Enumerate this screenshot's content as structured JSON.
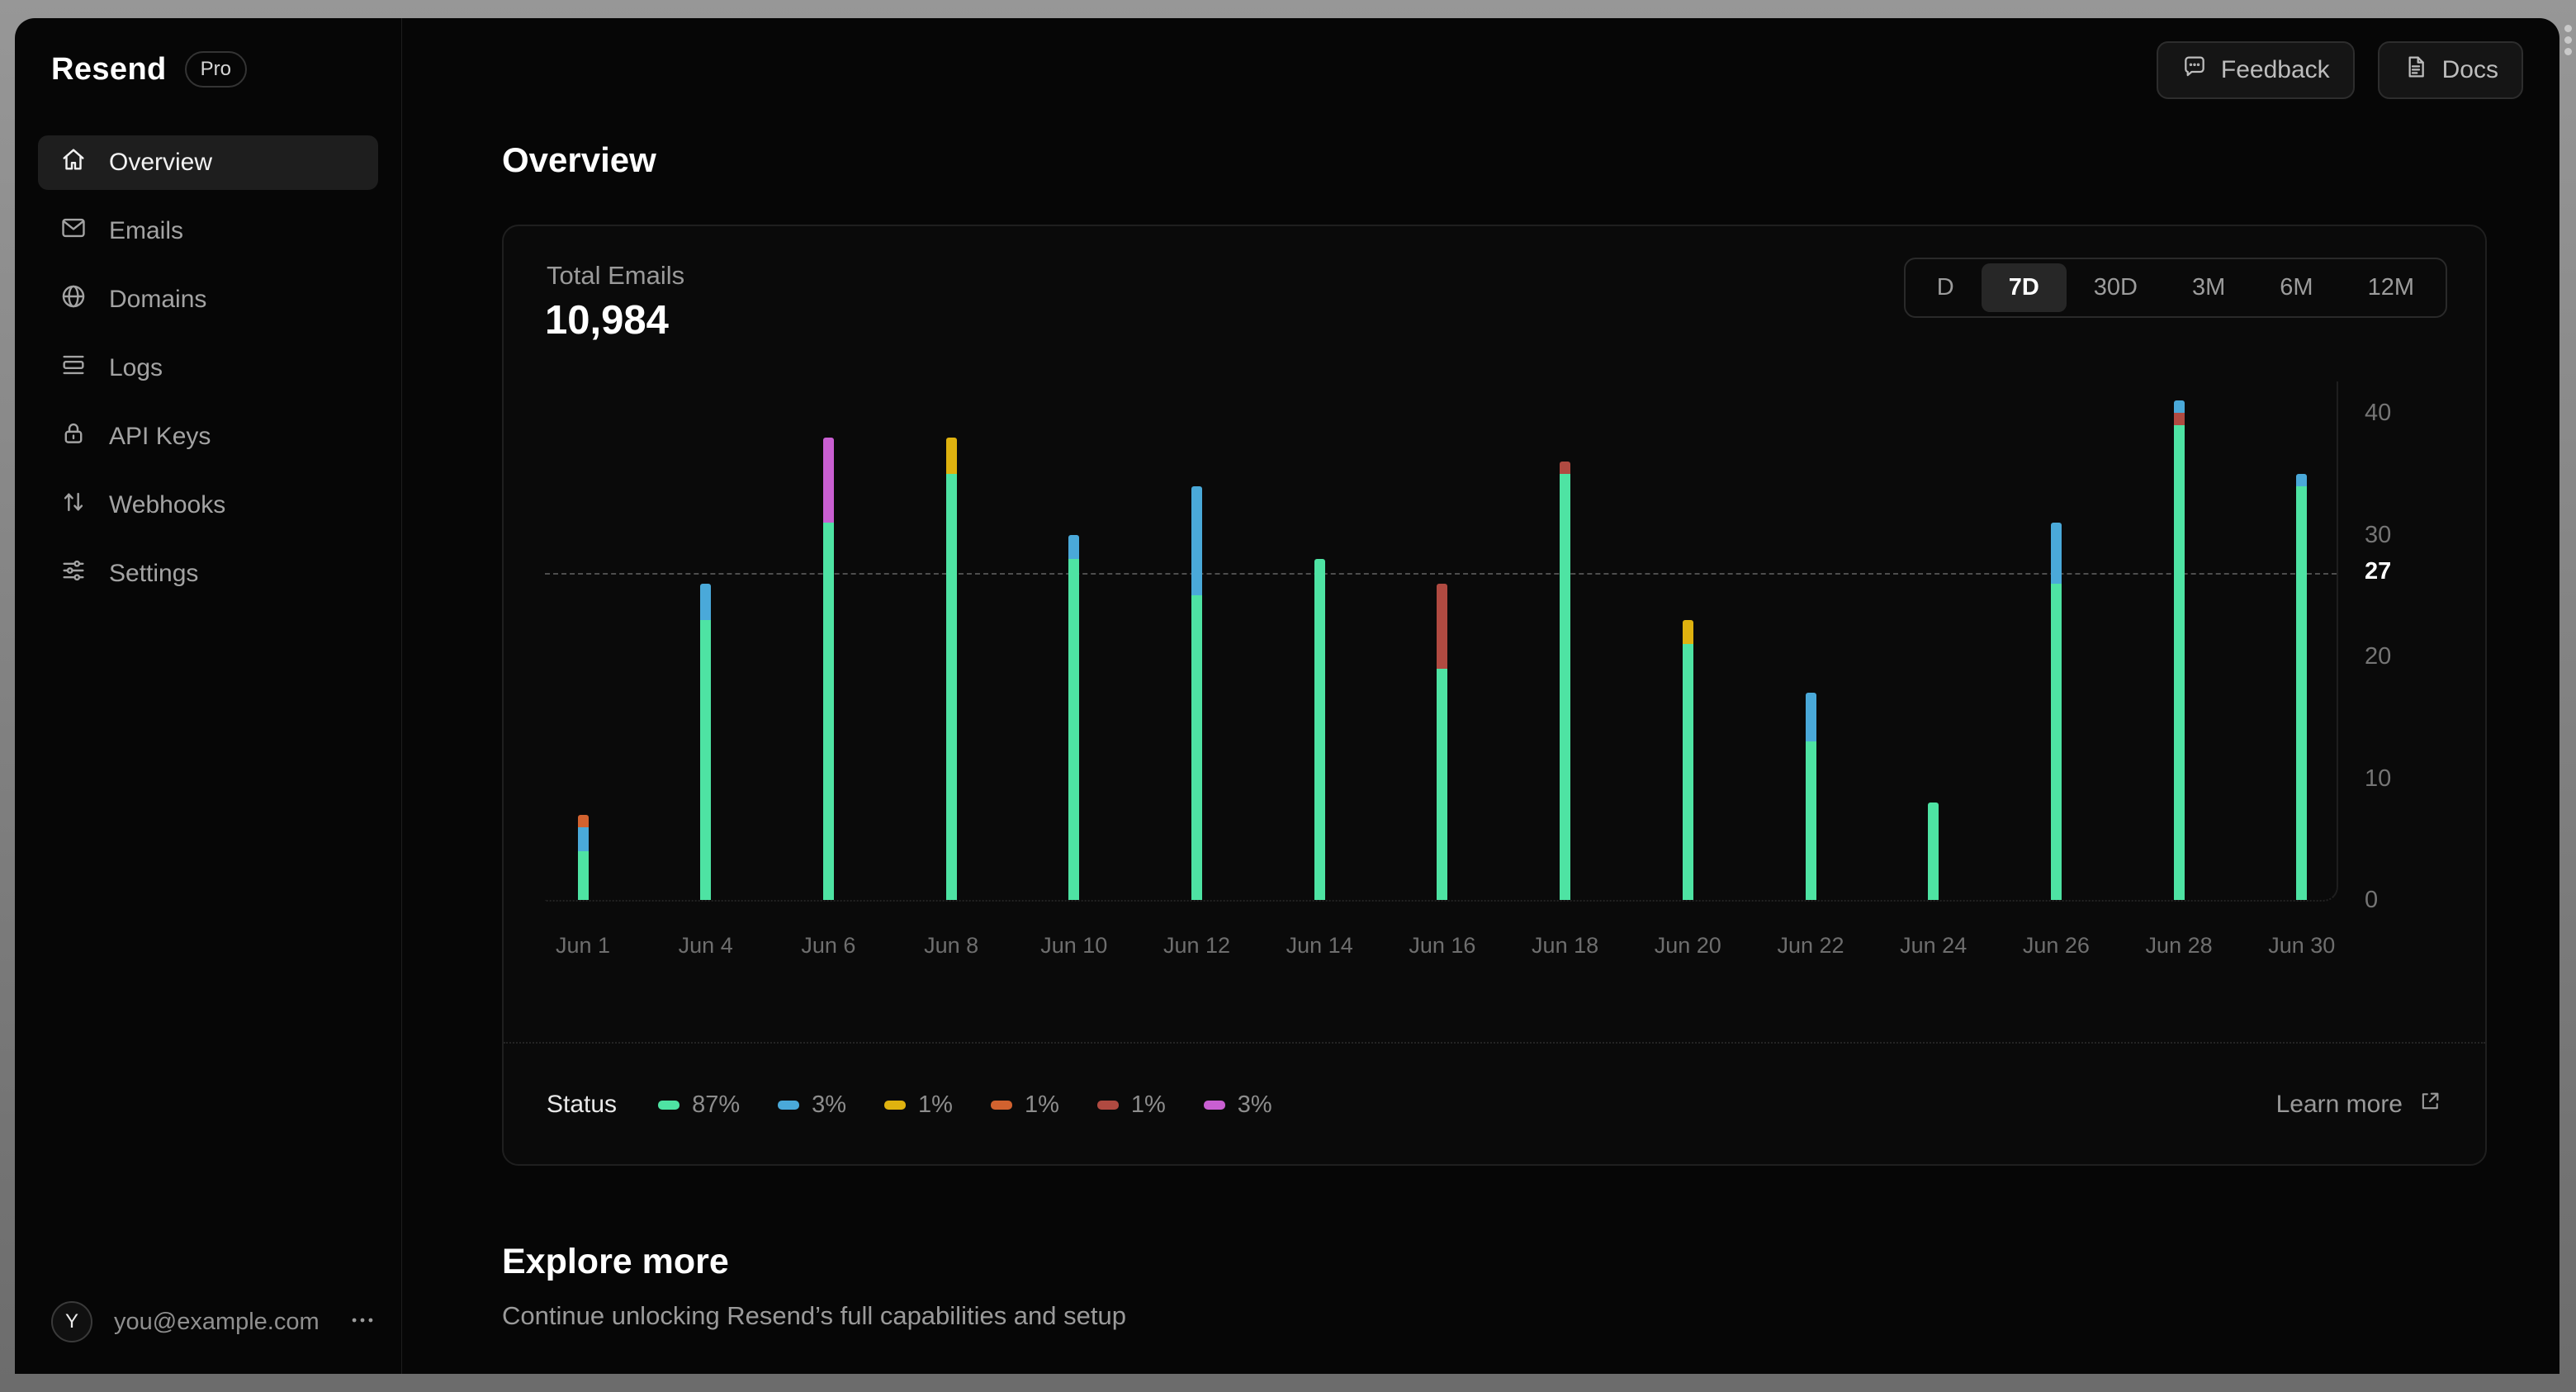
{
  "brand": {
    "name": "Resend",
    "plan_badge": "Pro"
  },
  "sidebar": {
    "items": [
      {
        "label": "Overview",
        "icon": "home",
        "active": true
      },
      {
        "label": "Emails",
        "icon": "mail",
        "active": false
      },
      {
        "label": "Domains",
        "icon": "globe",
        "active": false
      },
      {
        "label": "Logs",
        "icon": "logs",
        "active": false
      },
      {
        "label": "API Keys",
        "icon": "lock",
        "active": false
      },
      {
        "label": "Webhooks",
        "icon": "webhooks",
        "active": false
      },
      {
        "label": "Settings",
        "icon": "settings",
        "active": false
      }
    ],
    "user": {
      "avatar_initial": "Y",
      "email": "you@example.com"
    }
  },
  "topbar": {
    "feedback_label": "Feedback",
    "docs_label": "Docs"
  },
  "page": {
    "title": "Overview"
  },
  "card": {
    "metric_label": "Total Emails",
    "metric_value": "10,984",
    "ranges": [
      "D",
      "7D",
      "30D",
      "3M",
      "6M",
      "12M"
    ],
    "selected_range": "7D",
    "status_label": "Status",
    "learn_more_label": "Learn more"
  },
  "status_legend": [
    {
      "color": "green",
      "percent": "87%"
    },
    {
      "color": "blue",
      "percent": "3%"
    },
    {
      "color": "yellow",
      "percent": "1%"
    },
    {
      "color": "orange",
      "percent": "1%"
    },
    {
      "color": "red",
      "percent": "1%"
    },
    {
      "color": "magenta",
      "percent": "3%"
    }
  ],
  "explore": {
    "title": "Explore more",
    "subtitle": "Continue unlocking Resend’s full capabilities and setup"
  },
  "chart_data": {
    "type": "bar",
    "stacked": true,
    "title": "Total Emails",
    "yticks": [
      0,
      10,
      20,
      30,
      40
    ],
    "ylim": [
      0,
      42
    ],
    "reference_value": 27,
    "grid": false,
    "legend_position": "bottom",
    "colors": {
      "green": "#4ee3a3",
      "blue": "#4aa9d9",
      "yellow": "#dfb20f",
      "orange": "#d2622f",
      "red": "#b04a41",
      "magenta": "#c95fd2"
    },
    "categories": [
      "Jun 1",
      "Jun 4",
      "Jun 6",
      "Jun 8",
      "Jun 10",
      "Jun 12",
      "Jun 14",
      "Jun 16",
      "Jun 18",
      "Jun 20",
      "Jun 22",
      "Jun 24",
      "Jun 26",
      "Jun 28",
      "Jun 30"
    ],
    "bars": [
      {
        "date": "Jun 1",
        "segments": [
          {
            "color": "green",
            "value": 4
          },
          {
            "color": "blue",
            "value": 2
          },
          {
            "color": "orange",
            "value": 1
          }
        ]
      },
      {
        "date": "Jun 4",
        "segments": [
          {
            "color": "green",
            "value": 23
          },
          {
            "color": "blue",
            "value": 3
          }
        ]
      },
      {
        "date": "Jun 6",
        "segments": [
          {
            "color": "green",
            "value": 31
          },
          {
            "color": "magenta",
            "value": 7
          }
        ]
      },
      {
        "date": "Jun 8",
        "segments": [
          {
            "color": "green",
            "value": 35
          },
          {
            "color": "yellow",
            "value": 3
          }
        ]
      },
      {
        "date": "Jun 10",
        "segments": [
          {
            "color": "green",
            "value": 28
          },
          {
            "color": "blue",
            "value": 2
          }
        ]
      },
      {
        "date": "Jun 12",
        "segments": [
          {
            "color": "green",
            "value": 25
          },
          {
            "color": "blue",
            "value": 9
          }
        ]
      },
      {
        "date": "Jun 14",
        "segments": [
          {
            "color": "green",
            "value": 28
          }
        ]
      },
      {
        "date": "Jun 16",
        "segments": [
          {
            "color": "green",
            "value": 19
          },
          {
            "color": "red",
            "value": 7
          }
        ]
      },
      {
        "date": "Jun 18",
        "segments": [
          {
            "color": "green",
            "value": 35
          },
          {
            "color": "red",
            "value": 1
          }
        ]
      },
      {
        "date": "Jun 20",
        "segments": [
          {
            "color": "green",
            "value": 21
          },
          {
            "color": "yellow",
            "value": 2
          }
        ]
      },
      {
        "date": "Jun 22",
        "segments": [
          {
            "color": "green",
            "value": 13
          },
          {
            "color": "blue",
            "value": 4
          }
        ]
      },
      {
        "date": "Jun 24",
        "segments": [
          {
            "color": "green",
            "value": 8
          }
        ]
      },
      {
        "date": "Jun 26",
        "segments": [
          {
            "color": "green",
            "value": 26
          },
          {
            "color": "blue",
            "value": 5
          }
        ]
      },
      {
        "date": "Jun 28",
        "segments": [
          {
            "color": "green",
            "value": 39
          },
          {
            "color": "red",
            "value": 1
          },
          {
            "color": "blue",
            "value": 1
          }
        ]
      },
      {
        "date": "Jun 30",
        "segments": [
          {
            "color": "green",
            "value": 34
          },
          {
            "color": "blue",
            "value": 1
          }
        ]
      }
    ]
  }
}
